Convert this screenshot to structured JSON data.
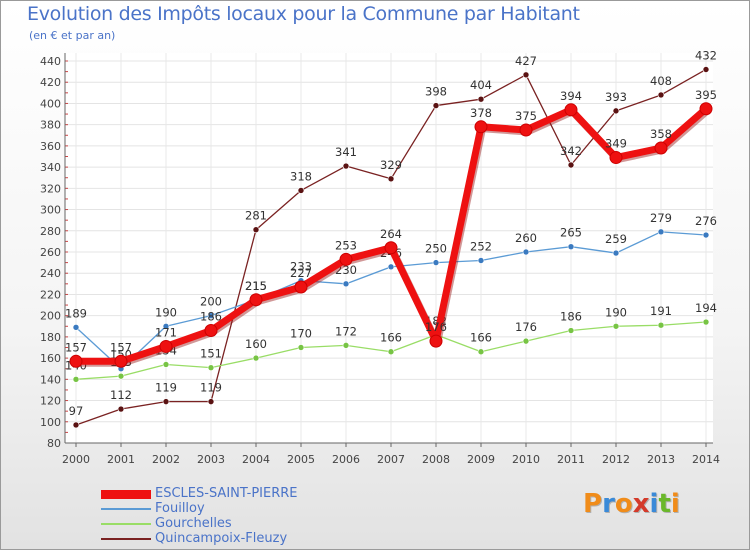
{
  "title": "Evolution des Impôts locaux pour la Commune par Habitant",
  "subtitle": "(en € et par an)",
  "logo": {
    "letters": [
      "P",
      "r",
      "o",
      "x",
      "i",
      "t",
      "i"
    ],
    "colors": [
      "#f08c1a",
      "#3a8ad8",
      "#f08c1a",
      "#d43a2a",
      "#3a8ad8",
      "#6ab82a",
      "#f08c1a"
    ]
  },
  "chart_data": {
    "type": "line",
    "title": "Evolution des Impôts locaux pour la Commune par Habitant",
    "subtitle": "(en € et par an)",
    "xlabel": "",
    "ylabel": "",
    "ylim": [
      80,
      440
    ],
    "y_ticks": [
      80,
      100,
      120,
      140,
      160,
      180,
      200,
      220,
      240,
      260,
      280,
      300,
      320,
      340,
      360,
      380,
      400,
      420,
      440
    ],
    "grid": true,
    "legend_position": "bottom-left",
    "x": [
      "2000",
      "2001",
      "2002",
      "2003",
      "2004",
      "2005",
      "2006",
      "2007",
      "2008",
      "2009",
      "2010",
      "2011",
      "2012",
      "2013",
      "2014"
    ],
    "series": [
      {
        "name": "ESCLES-SAINT-PIERRE",
        "color": "#ee1111",
        "values": [
          157,
          157,
          171,
          186,
          215,
          227,
          253,
          264,
          176,
          378,
          375,
          394,
          349,
          358,
          395
        ]
      },
      {
        "name": "Fouilloy",
        "color": "#5b9bd5",
        "values": [
          189,
          150,
          190,
          200,
          215,
          233,
          230,
          246,
          250,
          252,
          260,
          265,
          259,
          279,
          276
        ]
      },
      {
        "name": "Gourchelles",
        "color": "#99dd66",
        "values": [
          140,
          143,
          154,
          151,
          160,
          170,
          172,
          166,
          182,
          166,
          176,
          186,
          190,
          191,
          194
        ]
      },
      {
        "name": "Quincampoix-Fleuzy",
        "color": "#7a2222",
        "values": [
          97,
          112,
          119,
          119,
          281,
          318,
          341,
          329,
          398,
          404,
          427,
          342,
          393,
          408,
          432
        ]
      }
    ]
  }
}
